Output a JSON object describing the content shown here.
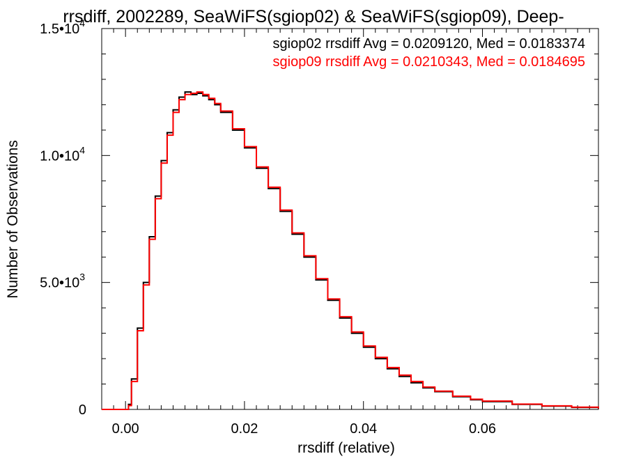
{
  "chart_data": {
    "type": "line",
    "title": "rrsdiff, 2002289, SeaWiFS(sgiop02) & SeaWiFS(sgiop09), Deep-",
    "xlabel": "rrsdiff (relative)",
    "ylabel": "Number of Observations",
    "xlim": [
      -0.004,
      0.0795
    ],
    "ylim": [
      0,
      15000
    ],
    "x_ticks": [
      {
        "value": 0.0,
        "label": "0.00"
      },
      {
        "value": 0.02,
        "label": "0.02"
      },
      {
        "value": 0.04,
        "label": "0.04"
      },
      {
        "value": 0.06,
        "label": "0.06"
      }
    ],
    "y_ticks": [
      {
        "value": 0,
        "mantissa": "0",
        "exp": ""
      },
      {
        "value": 5000,
        "mantissa": "5.0•10",
        "exp": "3"
      },
      {
        "value": 10000,
        "mantissa": "1.0•10",
        "exp": "4"
      },
      {
        "value": 15000,
        "mantissa": "1.5•10",
        "exp": "4"
      }
    ],
    "legend_position": "top-right",
    "grid": false,
    "series": [
      {
        "name": "sgiop02",
        "color": "#000000",
        "legend_label": "sgiop02 rrsdiff Avg = 0.0209120, Med = 0.0183374",
        "x": [
          -0.004,
          0.0,
          0.0005,
          0.001,
          0.002,
          0.003,
          0.004,
          0.005,
          0.006,
          0.007,
          0.008,
          0.009,
          0.01,
          0.011,
          0.012,
          0.013,
          0.014,
          0.015,
          0.016,
          0.018,
          0.02,
          0.022,
          0.024,
          0.026,
          0.028,
          0.03,
          0.032,
          0.034,
          0.036,
          0.038,
          0.04,
          0.042,
          0.044,
          0.046,
          0.048,
          0.05,
          0.052,
          0.055,
          0.058,
          0.06,
          0.065,
          0.07,
          0.075,
          0.0795
        ],
        "y": [
          0,
          0,
          200,
          1200,
          3200,
          5000,
          6800,
          8400,
          9800,
          10900,
          11800,
          12300,
          12500,
          12400,
          12450,
          12350,
          12200,
          12000,
          11700,
          11000,
          10300,
          9500,
          8700,
          7800,
          6900,
          6000,
          5100,
          4300,
          3600,
          3000,
          2450,
          2000,
          1600,
          1300,
          1050,
          850,
          700,
          500,
          380,
          310,
          200,
          130,
          80,
          30
        ]
      },
      {
        "name": "sgiop09",
        "color": "#ff0000",
        "legend_label": "sgiop09 rrsdiff Avg = 0.0210343, Med = 0.0184695",
        "x": [
          -0.004,
          0.0,
          0.0005,
          0.001,
          0.002,
          0.003,
          0.004,
          0.005,
          0.006,
          0.007,
          0.008,
          0.009,
          0.01,
          0.011,
          0.012,
          0.013,
          0.014,
          0.015,
          0.016,
          0.018,
          0.02,
          0.022,
          0.024,
          0.026,
          0.028,
          0.03,
          0.032,
          0.034,
          0.036,
          0.038,
          0.04,
          0.042,
          0.044,
          0.046,
          0.048,
          0.05,
          0.052,
          0.055,
          0.058,
          0.06,
          0.065,
          0.07,
          0.075,
          0.0795
        ],
        "y": [
          0,
          0,
          150,
          1100,
          3100,
          4900,
          6700,
          8300,
          9700,
          10800,
          11700,
          12200,
          12400,
          12450,
          12500,
          12400,
          12250,
          12050,
          11750,
          11050,
          10350,
          9550,
          8750,
          7850,
          6950,
          6050,
          5150,
          4350,
          3650,
          3050,
          2500,
          2050,
          1650,
          1350,
          1100,
          880,
          720,
          520,
          400,
          330,
          210,
          140,
          90,
          40
        ]
      }
    ]
  }
}
